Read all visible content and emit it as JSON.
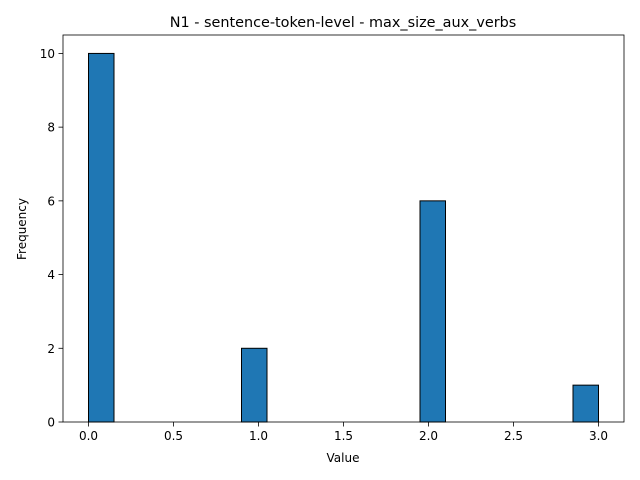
{
  "chart_data": {
    "type": "bar",
    "title": "N1 - sentence-token-level - max_size_aux_verbs",
    "xlabel": "Value",
    "ylabel": "Frequency",
    "xlim": [
      -0.15,
      3.15
    ],
    "ylim": [
      0,
      10.5
    ],
    "xticks": [
      "0.0",
      "0.5",
      "1.0",
      "1.5",
      "2.0",
      "2.5",
      "3.0"
    ],
    "yticks": [
      "0",
      "2",
      "4",
      "6",
      "8",
      "10"
    ],
    "bins": [
      {
        "start": 0.0,
        "end": 0.15,
        "count": 10
      },
      {
        "start": 0.9,
        "end": 1.05,
        "count": 2
      },
      {
        "start": 1.95,
        "end": 2.1,
        "count": 6
      },
      {
        "start": 2.85,
        "end": 3.0,
        "count": 1
      }
    ],
    "grid": false,
    "colors": {
      "bar_fill": "#1f77b4",
      "bar_edge": "#000000"
    }
  }
}
